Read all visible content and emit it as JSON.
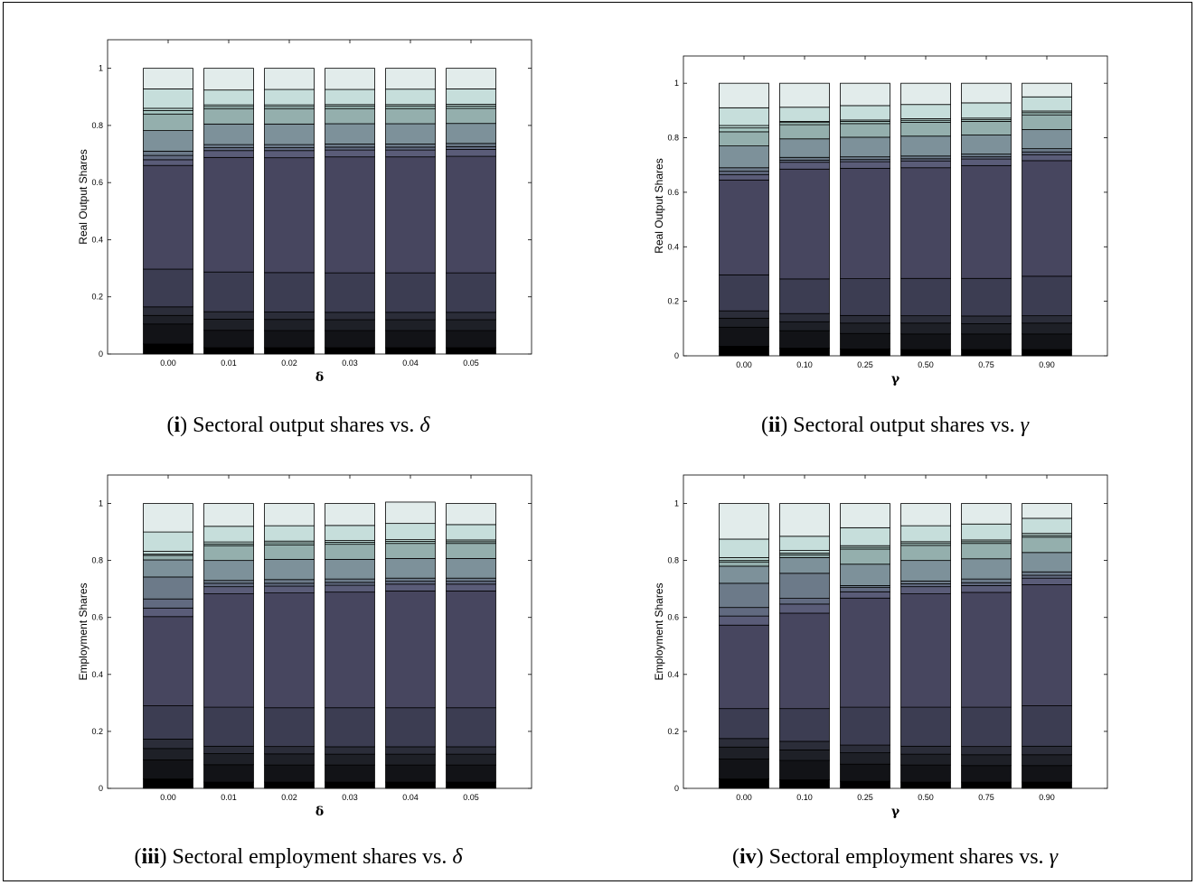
{
  "palette": [
    "#000000",
    "#121317",
    "#1e2027",
    "#2b2d39",
    "#3c3d52",
    "#47465f",
    "#5a5c78",
    "#616a80",
    "#6c7a89",
    "#7d919a",
    "#94afad",
    "#a6c7c2",
    "#bcd7d3",
    "#c6dedb",
    "#e2eceb",
    "#ffffff"
  ],
  "chart_data": [
    {
      "id": "i",
      "type": "bar",
      "stacked": true,
      "caption": {
        "label": "i",
        "text": "Sectoral output shares vs. ",
        "symbol": "δ"
      },
      "xlabel": "δ",
      "ylabel": "Real Output Shares",
      "ylim": [
        0,
        1.1
      ],
      "yticks": [
        "0",
        "0.2",
        "0.4",
        "0.6",
        "0.8",
        "1"
      ],
      "categories": [
        "0.00",
        "0.01",
        "0.02",
        "0.03",
        "0.04",
        "0.05"
      ],
      "stacks": [
        [
          0.035,
          0.105,
          0.135,
          0.165,
          0.297,
          0.66,
          0.68,
          0.695,
          0.71,
          0.782,
          0.84,
          0.852,
          0.86,
          0.928,
          1.0
        ],
        [
          0.022,
          0.083,
          0.122,
          0.148,
          0.287,
          0.688,
          0.712,
          0.722,
          0.733,
          0.805,
          0.858,
          0.866,
          0.872,
          0.924,
          1.0
        ],
        [
          0.022,
          0.082,
          0.121,
          0.147,
          0.285,
          0.687,
          0.712,
          0.722,
          0.733,
          0.805,
          0.858,
          0.866,
          0.872,
          0.926,
          1.0
        ],
        [
          0.022,
          0.082,
          0.12,
          0.146,
          0.284,
          0.69,
          0.714,
          0.724,
          0.735,
          0.806,
          0.859,
          0.867,
          0.873,
          0.926,
          1.0
        ],
        [
          0.022,
          0.082,
          0.12,
          0.146,
          0.284,
          0.69,
          0.714,
          0.724,
          0.735,
          0.806,
          0.859,
          0.867,
          0.873,
          0.927,
          1.0
        ],
        [
          0.022,
          0.082,
          0.12,
          0.146,
          0.284,
          0.692,
          0.716,
          0.726,
          0.737,
          0.807,
          0.86,
          0.868,
          0.874,
          0.928,
          1.0
        ]
      ]
    },
    {
      "id": "ii",
      "type": "bar",
      "stacked": true,
      "caption": {
        "label": "ii",
        "text": "Sectoral output shares vs. ",
        "symbol": "γ"
      },
      "xlabel": "γ",
      "ylabel": "Real Output Shares",
      "ylim": [
        0,
        1.1
      ],
      "yticks": [
        "0",
        "0.2",
        "0.4",
        "0.6",
        "0.8",
        "1"
      ],
      "categories": [
        "0.00",
        "0.10",
        "0.25",
        "0.50",
        "0.75",
        "0.90"
      ],
      "stacks": [
        [
          0.035,
          0.105,
          0.138,
          0.165,
          0.297,
          0.645,
          0.665,
          0.677,
          0.69,
          0.77,
          0.822,
          0.836,
          0.845,
          0.91,
          1.0
        ],
        [
          0.028,
          0.092,
          0.125,
          0.155,
          0.282,
          0.685,
          0.71,
          0.718,
          0.728,
          0.796,
          0.848,
          0.856,
          0.86,
          0.912,
          1.0
        ],
        [
          0.025,
          0.082,
          0.12,
          0.148,
          0.283,
          0.688,
          0.712,
          0.72,
          0.73,
          0.802,
          0.852,
          0.86,
          0.865,
          0.918,
          1.0
        ],
        [
          0.023,
          0.08,
          0.12,
          0.147,
          0.284,
          0.69,
          0.715,
          0.723,
          0.733,
          0.806,
          0.857,
          0.864,
          0.87,
          0.922,
          1.0
        ],
        [
          0.023,
          0.08,
          0.118,
          0.146,
          0.284,
          0.698,
          0.722,
          0.73,
          0.74,
          0.81,
          0.86,
          0.866,
          0.872,
          0.928,
          1.0
        ],
        [
          0.023,
          0.08,
          0.12,
          0.147,
          0.292,
          0.716,
          0.738,
          0.748,
          0.76,
          0.83,
          0.884,
          0.892,
          0.898,
          0.95,
          1.0
        ]
      ]
    },
    {
      "id": "iii",
      "type": "bar",
      "stacked": true,
      "caption": {
        "label": "iii",
        "text": "Sectoral employment shares vs. ",
        "symbol": "δ"
      },
      "xlabel": "δ",
      "ylabel": "Employment Shares",
      "ylim": [
        0,
        1.1
      ],
      "yticks": [
        "0",
        "0.2",
        "0.4",
        "0.6",
        "0.8",
        "1"
      ],
      "categories": [
        "0.00",
        "0.01",
        "0.02",
        "0.03",
        "0.04",
        "0.05"
      ],
      "stacks": [
        [
          0.033,
          0.1,
          0.14,
          0.173,
          0.29,
          0.603,
          0.633,
          0.665,
          0.742,
          0.802,
          0.818,
          0.822,
          0.832,
          0.9,
          1.0
        ],
        [
          0.022,
          0.083,
          0.122,
          0.148,
          0.285,
          0.683,
          0.708,
          0.72,
          0.73,
          0.8,
          0.852,
          0.858,
          0.865,
          0.92,
          1.0
        ],
        [
          0.022,
          0.082,
          0.121,
          0.147,
          0.283,
          0.686,
          0.71,
          0.72,
          0.733,
          0.804,
          0.855,
          0.862,
          0.868,
          0.922,
          1.0
        ],
        [
          0.022,
          0.082,
          0.12,
          0.146,
          0.283,
          0.689,
          0.713,
          0.723,
          0.735,
          0.804,
          0.857,
          0.864,
          0.87,
          0.923,
          1.0
        ],
        [
          0.022,
          0.082,
          0.12,
          0.146,
          0.283,
          0.693,
          0.717,
          0.727,
          0.738,
          0.807,
          0.86,
          0.867,
          0.873,
          0.93,
          1.005
        ],
        [
          0.022,
          0.082,
          0.12,
          0.146,
          0.283,
          0.693,
          0.717,
          0.727,
          0.738,
          0.807,
          0.86,
          0.866,
          0.872,
          0.926,
          1.0
        ]
      ]
    },
    {
      "id": "iv",
      "type": "bar",
      "stacked": true,
      "caption": {
        "label": "iv",
        "text": "Sectoral employment shares vs. ",
        "symbol": "γ"
      },
      "xlabel": "γ",
      "ylabel": "Employment Shares",
      "ylim": [
        0,
        1.1
      ],
      "yticks": [
        "0",
        "0.2",
        "0.4",
        "0.6",
        "0.8",
        "1"
      ],
      "categories": [
        "0.00",
        "0.10",
        "0.25",
        "0.50",
        "0.75",
        "0.90"
      ],
      "stacks": [
        [
          0.033,
          0.103,
          0.145,
          0.175,
          0.28,
          0.573,
          0.605,
          0.635,
          0.72,
          0.78,
          0.795,
          0.8,
          0.81,
          0.875,
          1.0
        ],
        [
          0.03,
          0.098,
          0.135,
          0.165,
          0.28,
          0.615,
          0.647,
          0.667,
          0.755,
          0.81,
          0.82,
          0.826,
          0.835,
          0.885,
          1.0
        ],
        [
          0.025,
          0.085,
          0.125,
          0.152,
          0.285,
          0.668,
          0.69,
          0.705,
          0.712,
          0.787,
          0.84,
          0.846,
          0.852,
          0.915,
          1.0
        ],
        [
          0.022,
          0.082,
          0.12,
          0.148,
          0.285,
          0.683,
          0.708,
          0.718,
          0.728,
          0.8,
          0.853,
          0.86,
          0.866,
          0.922,
          1.0
        ],
        [
          0.022,
          0.08,
          0.118,
          0.147,
          0.285,
          0.688,
          0.712,
          0.722,
          0.735,
          0.806,
          0.86,
          0.866,
          0.872,
          0.928,
          1.0
        ],
        [
          0.022,
          0.08,
          0.118,
          0.148,
          0.29,
          0.715,
          0.738,
          0.748,
          0.76,
          0.828,
          0.882,
          0.888,
          0.895,
          0.948,
          1.0
        ]
      ]
    }
  ]
}
